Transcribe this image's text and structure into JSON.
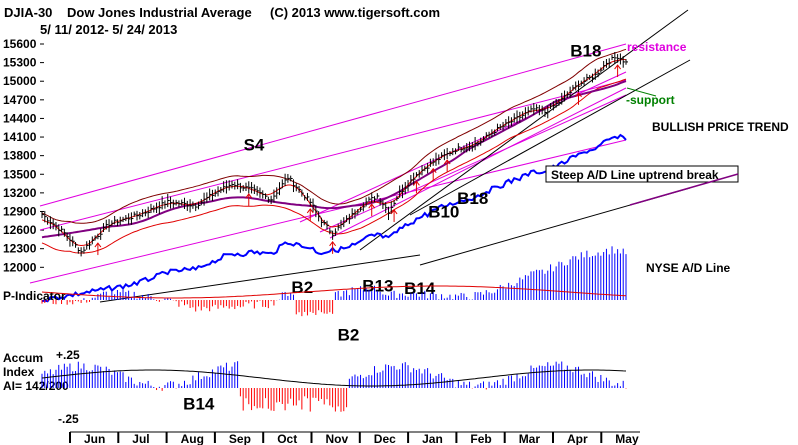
{
  "header": {
    "ticker": "DJIA-30",
    "name": "Dow Jones Industrial Average",
    "copyright": "(C) 2013 www.tigersoft.com",
    "date_range": "5/ 11/ 2012- 5/ 24/ 2013"
  },
  "colors": {
    "price": "#000000",
    "channel": "#e000e0",
    "band_red": "#e00000",
    "ma_brown": "#800000",
    "ma_purple": "#800080",
    "ad_line": "#0000ff",
    "indicator_blue": "#0000ff",
    "indicator_red": "#ff0000",
    "support_green": "#008000"
  },
  "chart_data": {
    "type": "line",
    "title": "DJIA-30 Dow Jones Industrial Average",
    "ylim": [
      12150,
      15600
    ],
    "yticks": [
      "15600",
      "15300",
      "15000",
      "14700",
      "14400",
      "14100",
      "13800",
      "13500",
      "13200",
      "12900",
      "12600",
      "12300",
      "12000"
    ],
    "months": [
      "Jun",
      "Jul",
      "Aug",
      "Sep",
      "Oct",
      "Nov",
      "Dec",
      "Jan",
      "Feb",
      "Mar",
      "Apr",
      "May"
    ],
    "price_key_points": [
      [
        0,
        12850
      ],
      [
        8,
        12550
      ],
      [
        14,
        12250
      ],
      [
        24,
        12700
      ],
      [
        35,
        12850
      ],
      [
        45,
        13050
      ],
      [
        55,
        13000
      ],
      [
        62,
        13200
      ],
      [
        68,
        13350
      ],
      [
        75,
        13250
      ],
      [
        82,
        13100
      ],
      [
        88,
        13450
      ],
      [
        92,
        13250
      ],
      [
        96,
        13050
      ],
      [
        100,
        12750
      ],
      [
        104,
        12550
      ],
      [
        110,
        12800
      ],
      [
        116,
        13050
      ],
      [
        120,
        13150
      ],
      [
        124,
        12900
      ],
      [
        128,
        13200
      ],
      [
        134,
        13500
      ],
      [
        140,
        13700
      ],
      [
        148,
        13900
      ],
      [
        156,
        14000
      ],
      [
        162,
        14200
      ],
      [
        170,
        14400
      ],
      [
        176,
        14550
      ],
      [
        180,
        14500
      ],
      [
        186,
        14700
      ],
      [
        192,
        14950
      ],
      [
        198,
        15100
      ],
      [
        202,
        15300
      ],
      [
        206,
        15400
      ],
      [
        209,
        15300
      ]
    ],
    "signals": [
      {
        "label": "S4",
        "kind": "sell"
      },
      {
        "label": "B2",
        "kind": "buy"
      },
      {
        "label": "B2",
        "kind": "buy"
      },
      {
        "label": "B13",
        "kind": "buy"
      },
      {
        "label": "B14",
        "kind": "buy"
      },
      {
        "label": "B14",
        "kind": "buy"
      },
      {
        "label": "B10",
        "kind": "buy"
      },
      {
        "label": "B18",
        "kind": "buy"
      },
      {
        "label": "B18",
        "kind": "buy"
      }
    ]
  },
  "annotations": {
    "resistance": "resistance",
    "support": "-support",
    "bullish": "BULLISH PRICE TREND",
    "steep": "Steep A/D Line uptrend break",
    "nyse": "NYSE A/D Line"
  },
  "p_indicator": {
    "label": "P-Indicator"
  },
  "accum": {
    "label1": "Accum",
    "label2": "Index",
    "ai": "AI= 142/200",
    "top": "+.25",
    "bottom": "-.25"
  }
}
